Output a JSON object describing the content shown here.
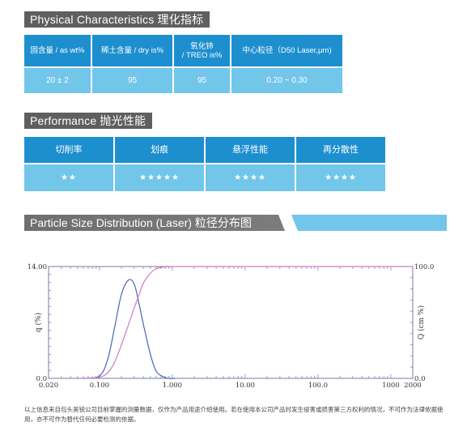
{
  "physical": {
    "title": "Physical Characteristics  理化指标",
    "headers": [
      "固含量 / as wt%",
      "稀土含量 / dry is%",
      "氧化铈\n/ TREO is%",
      "中心粒径（D50 Laser,μm)"
    ],
    "values": [
      "20 ± 2",
      "95",
      "95",
      "0.20 ~ 0.30"
    ]
  },
  "performance": {
    "title": "Performance 抛光性能",
    "headers": [
      "切削率",
      "划痕",
      "悬浮性能",
      "再分散性"
    ],
    "stars": [
      "★★",
      "★★★★★",
      "★★★★",
      "★★★★"
    ]
  },
  "psd": {
    "title": "Particle Size Distribution (Laser) 粒径分布图"
  },
  "chart_data": {
    "type": "line",
    "x_scale": "log",
    "xlim": [
      0.02,
      2000
    ],
    "x_ticks": [
      "0.020",
      "0.100",
      "1.000",
      "10.00",
      "100.0",
      "1000",
      "2000"
    ],
    "y_left": {
      "label": "q (%)",
      "range": [
        0,
        14
      ],
      "tick_labels": [
        "14.00",
        "0.0"
      ]
    },
    "y_right": {
      "label": "Q (cm %)",
      "range": [
        0,
        100
      ],
      "tick_labels": [
        "100.0",
        "0.0"
      ]
    },
    "series": [
      {
        "axis": "left",
        "color": "#4a64b4",
        "x": [
          0.06,
          0.1,
          0.13,
          0.16,
          0.2,
          0.25,
          0.3,
          0.35,
          0.4,
          0.5,
          0.6,
          0.75,
          0.9,
          1.1
        ],
        "y": [
          0.0,
          0.3,
          2.4,
          6.2,
          10.5,
          12.3,
          11.8,
          9.3,
          6.8,
          3.0,
          0.9,
          0.2,
          0.0,
          0.0
        ]
      },
      {
        "axis": "right",
        "color": "#c77dc4",
        "x": [
          0.06,
          0.1,
          0.13,
          0.16,
          0.2,
          0.25,
          0.3,
          0.35,
          0.4,
          0.5,
          0.6,
          0.75,
          1.0,
          1.5,
          2000
        ],
        "y": [
          0,
          1,
          5,
          14,
          30,
          48,
          63,
          75,
          85,
          94,
          98,
          99.5,
          100,
          100,
          100
        ]
      }
    ]
  },
  "footnote": "以上信息来自包头昊锐公司目前掌握的测量数据，仅作为产品用途介绍使用。若在使用本公司产品时发生侵害或损害第三方权利的情况，不可作为法律依据使用，亦不可作为替代任何必要检测的依据。",
  "colors": {
    "header_blue": "#1d8fcf",
    "cell_blue": "#72c6ea",
    "title_gray": "#5f5f5f"
  }
}
